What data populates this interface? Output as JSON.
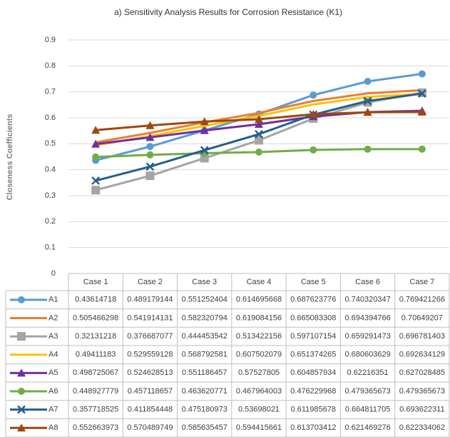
{
  "chart_data": {
    "type": "line",
    "title": "a) Sensitivity Analysis Results for Corrosion Resistance (K1)",
    "y_label": "Closeness Coefficients",
    "categories": [
      "Case 1",
      "Case 2",
      "Case 3",
      "Case 4",
      "Case 5",
      "Case 6",
      "Case 7"
    ],
    "ylim": [
      0,
      0.9
    ],
    "yticks": [
      0,
      0.1,
      0.2,
      0.3,
      0.4,
      0.5,
      0.6,
      0.7,
      0.8,
      0.9
    ],
    "grid": true,
    "series": [
      {
        "name": "A1",
        "color": "#5b9bd5",
        "marker": "circle",
        "values": [
          0.43614718,
          0.489179144,
          0.551252404,
          0.614695668,
          0.687623776,
          0.740320347,
          0.769421266
        ]
      },
      {
        "name": "A2",
        "color": "#ed7d31",
        "marker": "none",
        "values": [
          0.505466298,
          0.541914131,
          0.582320794,
          0.619084156,
          0.665083308,
          0.694394766,
          0.70649207
        ]
      },
      {
        "name": "A3",
        "color": "#a5a5a5",
        "marker": "square",
        "values": [
          0.32131218,
          0.376687077,
          0.444453542,
          0.513422156,
          0.597107154,
          0.659291473,
          0.696781403
        ]
      },
      {
        "name": "A4",
        "color": "#ffc000",
        "marker": "none",
        "values": [
          0.49411183,
          0.529559128,
          0.568792581,
          0.607502079,
          0.651374265,
          0.680603629,
          0.692634129
        ]
      },
      {
        "name": "A5",
        "color": "#7030a0",
        "marker": "triangle",
        "values": [
          0.498725067,
          0.524628513,
          0.551186457,
          0.57527805,
          0.604857934,
          0.62216351,
          0.627028485
        ]
      },
      {
        "name": "A6",
        "color": "#70ad47",
        "marker": "circle",
        "values": [
          0.448927779,
          0.457118657,
          0.463620771,
          0.467964003,
          0.476229968,
          0.479365673,
          0.479365673
        ]
      },
      {
        "name": "A7",
        "color": "#255e91",
        "marker": "x",
        "values": [
          0.357718525,
          0.411854448,
          0.475180973,
          0.53698021,
          0.611985678,
          0.664811705,
          0.693622311
        ]
      },
      {
        "name": "A8",
        "color": "#9e480e",
        "marker": "triangle",
        "values": [
          0.552663973,
          0.570489749,
          0.585635457,
          0.594415661,
          0.613703412,
          0.621469276,
          0.622334062
        ]
      }
    ]
  }
}
